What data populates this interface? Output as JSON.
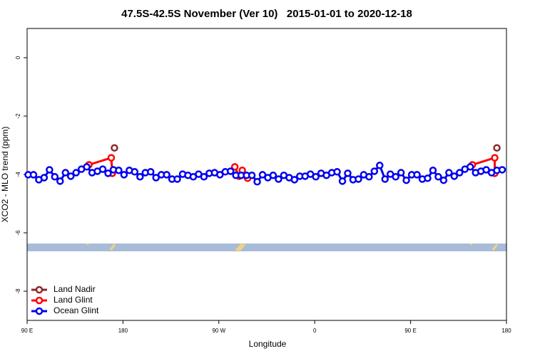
{
  "chart_data": {
    "type": "line",
    "title": "47.5S-42.5S November (Ver 10)   2015-01-01 to 2020-12-18",
    "x_label": "Longitude",
    "y_label": "XCO2 - MLO trend (ppm)",
    "xlim": [
      90,
      540
    ],
    "ylim": [
      -9,
      1
    ],
    "xticks": [
      {
        "value": 90,
        "label": "90 E"
      },
      180,
      {
        "value": 270,
        "label": "90 W"
      },
      {
        "value": 360,
        "label": "0"
      },
      {
        "value": 450,
        "label": "90 E"
      },
      {
        "value": 540,
        "label": "180"
      }
    ],
    "yticks": [
      0,
      -2,
      -4,
      -6,
      -8
    ],
    "legend": "bottom-left",
    "series": [
      {
        "name": "Land Nadir",
        "color": "#8b2a2a",
        "x": [
          172,
          350,
          531
        ],
        "values": [
          -3.09,
          null,
          -3.09
        ]
      },
      {
        "name": "Land Glint",
        "color": "#ff0000",
        "x": [
          148,
          169,
          170,
          230,
          285,
          289,
          292,
          297,
          400,
          508,
          529,
          529
        ],
        "values": [
          -3.67,
          -3.43,
          -3.96,
          null,
          -3.74,
          -4.06,
          -3.86,
          -4.13,
          null,
          -3.67,
          -3.43,
          -3.96
        ]
      },
      {
        "name": "Ocean Glint",
        "color": "#0000ee",
        "x": [
          91,
          96,
          101,
          106,
          111,
          116,
          121,
          126,
          131,
          136,
          141,
          146,
          151,
          156,
          161,
          166,
          171,
          176,
          181,
          186,
          191,
          196,
          201,
          206,
          211,
          216,
          221,
          226,
          231,
          236,
          241,
          246,
          251,
          256,
          261,
          266,
          271,
          276,
          281,
          286,
          291,
          296,
          301,
          306,
          311,
          316,
          321,
          326,
          331,
          336,
          341,
          346,
          351,
          356,
          361,
          366,
          371,
          376,
          381,
          386,
          391,
          396,
          401,
          406,
          411,
          416,
          421,
          426,
          431,
          436,
          441,
          446,
          451,
          456,
          461,
          466,
          471,
          476,
          481,
          486,
          491,
          496,
          501,
          506,
          511,
          516,
          521,
          526,
          531,
          536
        ],
        "values": [
          -4.01,
          -4.01,
          -4.18,
          -4.11,
          -3.84,
          -4.08,
          -4.23,
          -3.94,
          -4.06,
          -3.94,
          -3.82,
          -3.74,
          -3.94,
          -3.89,
          -3.82,
          -3.96,
          -3.84,
          -3.86,
          -4.01,
          -3.86,
          -3.91,
          -4.08,
          -3.94,
          -3.91,
          -4.11,
          -4.01,
          -4.01,
          -4.16,
          -4.16,
          -3.99,
          -4.03,
          -4.08,
          -3.99,
          -4.08,
          -3.96,
          -3.94,
          -4.01,
          -3.91,
          -3.89,
          -4.03,
          -4.03,
          -4.03,
          -4.03,
          -4.25,
          -4.01,
          -4.11,
          -4.03,
          -4.16,
          -4.03,
          -4.11,
          -4.18,
          -4.06,
          -4.06,
          -3.99,
          -4.08,
          -3.96,
          -4.03,
          -3.94,
          -3.91,
          -4.23,
          -3.96,
          -4.18,
          -4.16,
          -4.01,
          -4.08,
          -3.89,
          -3.69,
          -4.16,
          -3.99,
          -4.08,
          -3.94,
          -4.2,
          -4.01,
          -4.01,
          -4.16,
          -4.13,
          -3.86,
          -4.08,
          -4.2,
          -3.94,
          -4.06,
          -3.94,
          -3.82,
          -3.74,
          -3.94,
          -3.89,
          -3.84,
          -3.94,
          -3.86,
          -3.84
        ]
      }
    ]
  }
}
